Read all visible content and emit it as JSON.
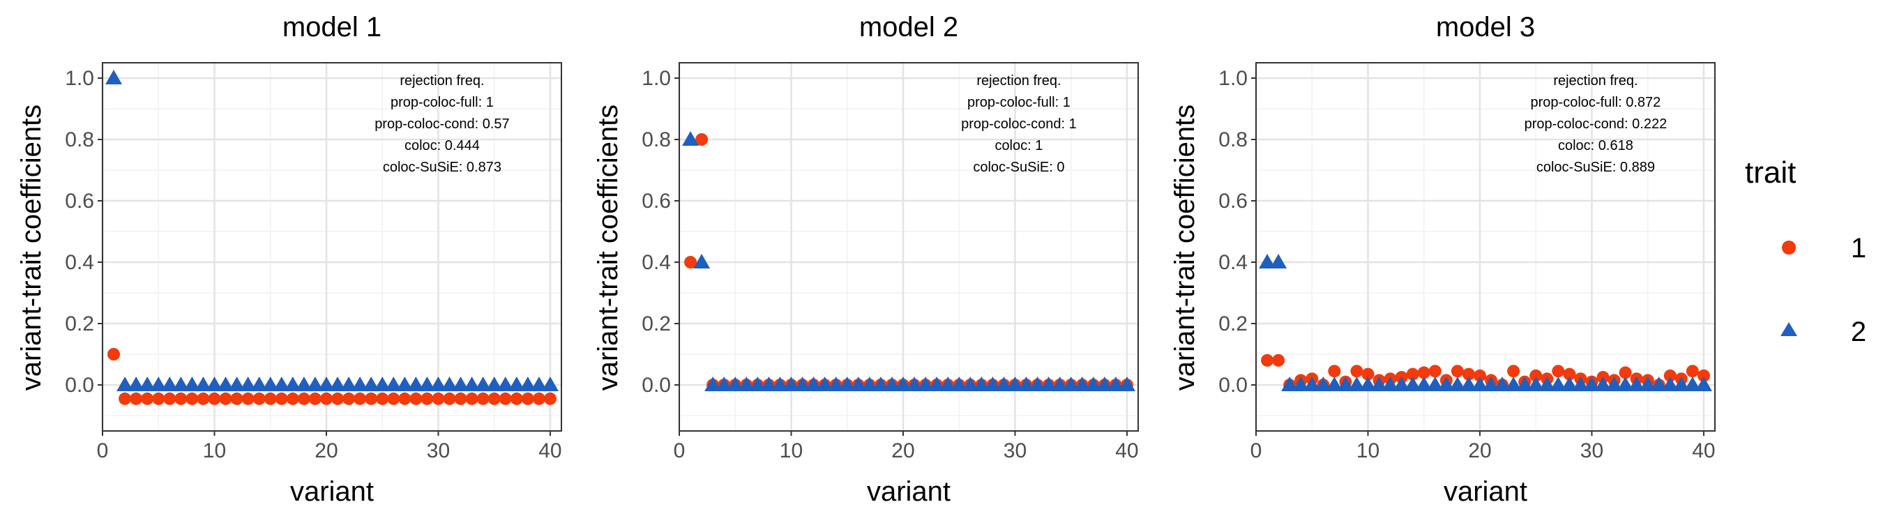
{
  "colors": {
    "trait1": "#f23a0b",
    "trait2": "#1f5fbf",
    "grid_major": "#e3e3e3",
    "grid_minor": "#f2f2f2"
  },
  "legend": {
    "title": "trait",
    "items": [
      {
        "label": "1",
        "shape": "circle",
        "color": "#f23a0b"
      },
      {
        "label": "2",
        "shape": "triangle",
        "color": "#1f5fbf"
      }
    ]
  },
  "chart_data": [
    {
      "type": "scatter",
      "title": "model 1",
      "xlabel": "variant",
      "ylabel": "variant-trait coefficients",
      "xlim": [
        0,
        41
      ],
      "ylim": [
        -0.15,
        1.05
      ],
      "xticks": [
        0,
        10,
        20,
        30,
        40
      ],
      "yticks": [
        0.0,
        0.2,
        0.4,
        0.6,
        0.8,
        1.0
      ],
      "annotation": [
        "rejection freq.",
        "prop-coloc-full: 1",
        "prop-coloc-cond: 0.57",
        "coloc: 0.444",
        "coloc-SuSiE: 0.873"
      ],
      "series": [
        {
          "name": "1",
          "shape": "circle",
          "points": [
            [
              1,
              0.1
            ],
            {
              "range": [
                2,
                40
              ],
              "y": -0.045
            }
          ]
        },
        {
          "name": "2",
          "shape": "triangle",
          "points": [
            [
              1,
              1.0
            ],
            {
              "range": [
                2,
                40
              ],
              "y": 0.0
            }
          ]
        }
      ]
    },
    {
      "type": "scatter",
      "title": "model 2",
      "xlabel": "variant",
      "ylabel": "variant-trait coefficients",
      "xlim": [
        0,
        41
      ],
      "ylim": [
        -0.15,
        1.05
      ],
      "xticks": [
        0,
        10,
        20,
        30,
        40
      ],
      "yticks": [
        0.0,
        0.2,
        0.4,
        0.6,
        0.8,
        1.0
      ],
      "annotation": [
        "rejection freq.",
        "prop-coloc-full: 1",
        "prop-coloc-cond: 1",
        "coloc: 1",
        "coloc-SuSiE: 0"
      ],
      "series": [
        {
          "name": "1",
          "shape": "circle",
          "points": [
            [
              1,
              0.4
            ],
            [
              2,
              0.8
            ],
            {
              "range": [
                3,
                40
              ],
              "y": 0.0
            }
          ]
        },
        {
          "name": "2",
          "shape": "triangle",
          "points": [
            [
              1,
              0.8
            ],
            [
              2,
              0.4
            ],
            {
              "range": [
                3,
                40
              ],
              "y": 0.0
            }
          ]
        }
      ]
    },
    {
      "type": "scatter",
      "title": "model 3",
      "xlabel": "variant",
      "ylabel": "variant-trait coefficients",
      "xlim": [
        0,
        41
      ],
      "ylim": [
        -0.15,
        1.05
      ],
      "xticks": [
        0,
        10,
        20,
        30,
        40
      ],
      "yticks": [
        0.0,
        0.2,
        0.4,
        0.6,
        0.8,
        1.0
      ],
      "annotation": [
        "rejection freq.",
        "prop-coloc-full: 0.872",
        "prop-coloc-cond: 0.222",
        "coloc: 0.618",
        "coloc-SuSiE: 0.889"
      ],
      "series": [
        {
          "name": "1",
          "shape": "circle",
          "points": [
            [
              1,
              0.08
            ],
            [
              2,
              0.08
            ],
            [
              3,
              0.0
            ],
            [
              4,
              0.015
            ],
            [
              5,
              0.02
            ],
            [
              6,
              0.0
            ],
            [
              7,
              0.045
            ],
            [
              8,
              0.01
            ],
            [
              9,
              0.045
            ],
            [
              10,
              0.035
            ],
            [
              11,
              0.015
            ],
            [
              12,
              0.02
            ],
            [
              13,
              0.025
            ],
            [
              14,
              0.035
            ],
            [
              15,
              0.04
            ],
            [
              16,
              0.045
            ],
            [
              17,
              0.015
            ],
            [
              18,
              0.045
            ],
            [
              19,
              0.035
            ],
            [
              20,
              0.03
            ],
            [
              21,
              0.015
            ],
            [
              22,
              0.0
            ],
            [
              23,
              0.045
            ],
            [
              24,
              0.01
            ],
            [
              25,
              0.03
            ],
            [
              26,
              0.02
            ],
            [
              27,
              0.045
            ],
            [
              28,
              0.035
            ],
            [
              29,
              0.02
            ],
            [
              30,
              0.01
            ],
            [
              31,
              0.025
            ],
            [
              32,
              0.015
            ],
            [
              33,
              0.04
            ],
            [
              34,
              0.02
            ],
            [
              35,
              0.015
            ],
            [
              36,
              0.0
            ],
            [
              37,
              0.03
            ],
            [
              38,
              0.02
            ],
            [
              39,
              0.045
            ],
            [
              40,
              0.03
            ]
          ]
        },
        {
          "name": "2",
          "shape": "triangle",
          "points": [
            [
              1,
              0.4
            ],
            [
              2,
              0.4
            ],
            {
              "range": [
                3,
                40
              ],
              "y": 0.0
            }
          ]
        }
      ]
    }
  ]
}
